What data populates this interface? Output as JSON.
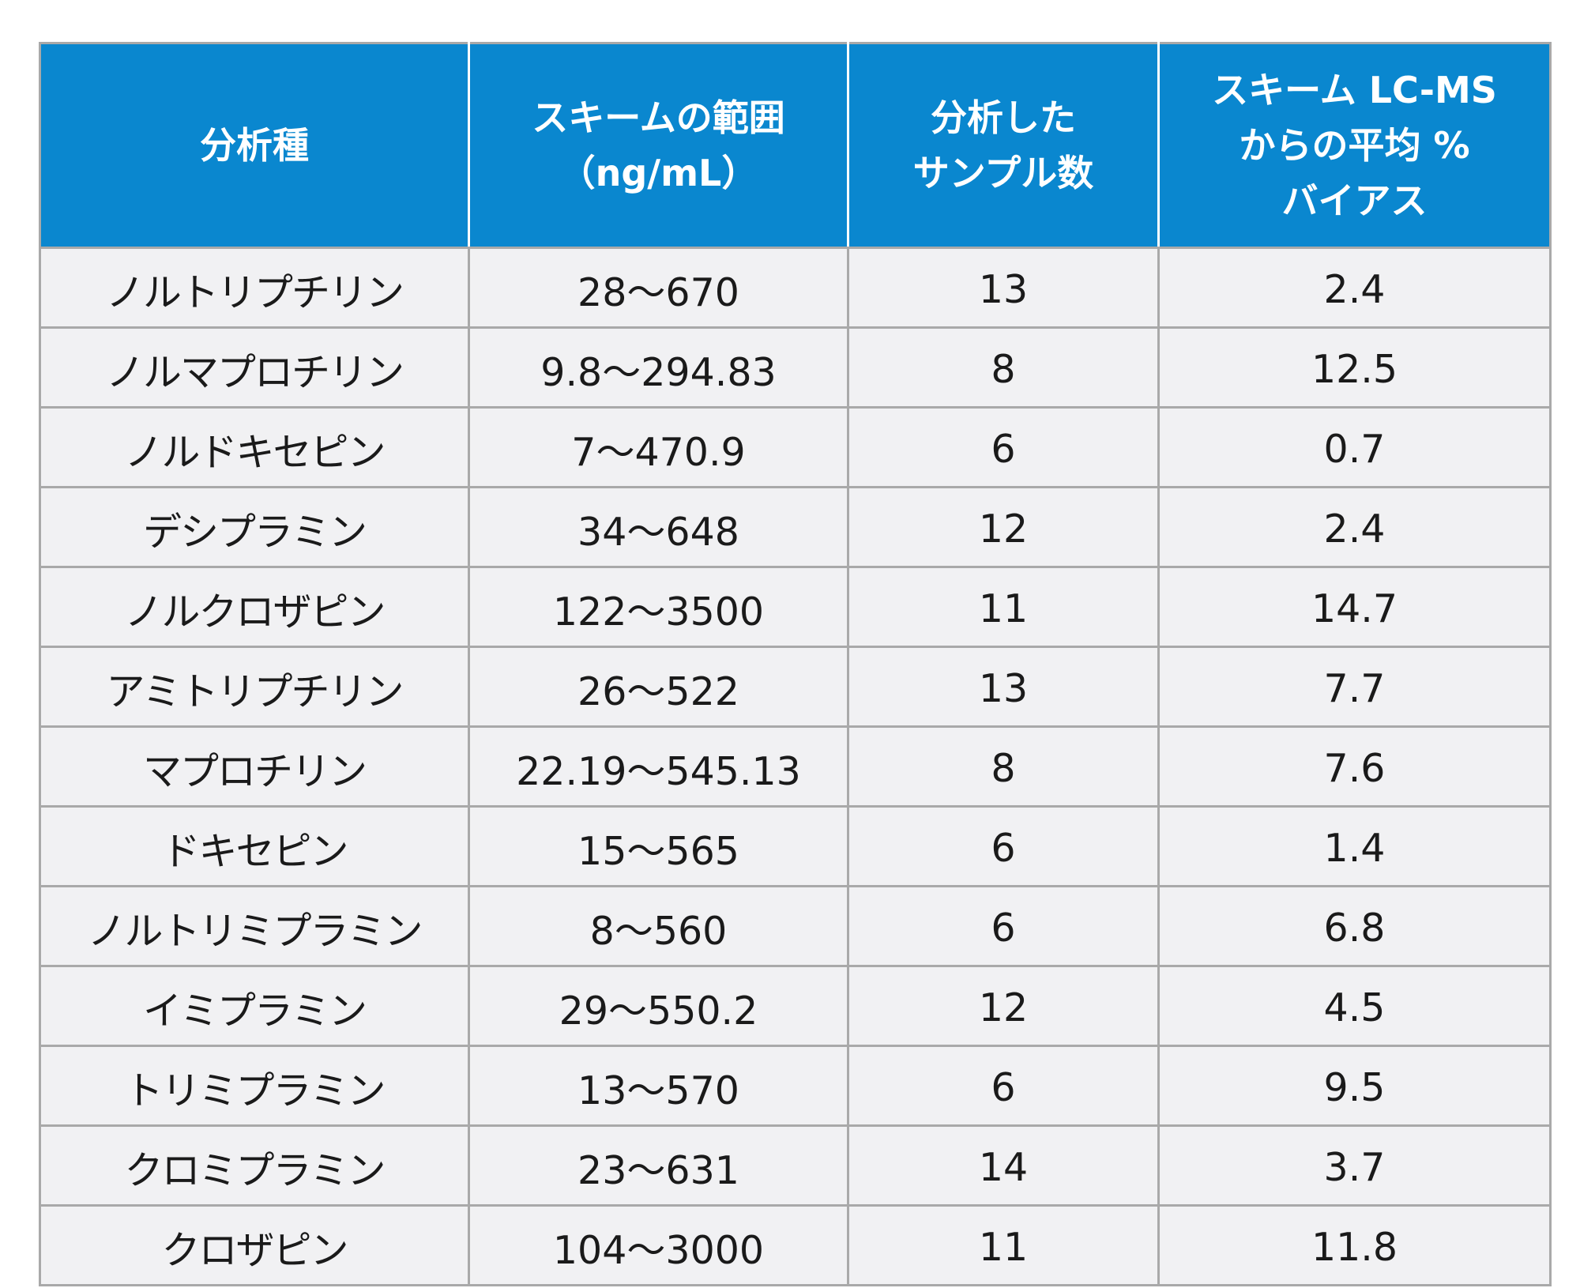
{
  "table": {
    "headers": [
      [
        "分析種"
      ],
      [
        "スキームの範囲",
        "（ng/mL）"
      ],
      [
        "分析した",
        "サンプル数"
      ],
      [
        "スキーム LC-MS",
        "からの平均 %",
        "バイアス"
      ]
    ],
    "rows": [
      [
        "ノルトリプチリン",
        "28～670",
        "13",
        "2.4"
      ],
      [
        "ノルマプロチリン",
        "9.8～294.83",
        "8",
        "12.5"
      ],
      [
        "ノルドキセピン",
        "7～470.9",
        "6",
        "0.7"
      ],
      [
        "デシプラミン",
        "34～648",
        "12",
        "2.4"
      ],
      [
        "ノルクロザピン",
        "122～3500",
        "11",
        "14.7"
      ],
      [
        "アミトリプチリン",
        "26～522",
        "13",
        "7.7"
      ],
      [
        "マプロチリン",
        "22.19～545.13",
        "8",
        "7.6"
      ],
      [
        "ドキセピン",
        "15～565",
        "6",
        "1.4"
      ],
      [
        "ノルトリミプラミン",
        "8～560",
        "6",
        "6.8"
      ],
      [
        "イミプラミン",
        "29～550.2",
        "12",
        "4.5"
      ],
      [
        "トリミプラミン",
        "13～570",
        "6",
        "9.5"
      ],
      [
        "クロミプラミン",
        "23～631",
        "14",
        "3.7"
      ],
      [
        "クロザピン",
        "104～3000",
        "11",
        "11.8"
      ]
    ]
  }
}
